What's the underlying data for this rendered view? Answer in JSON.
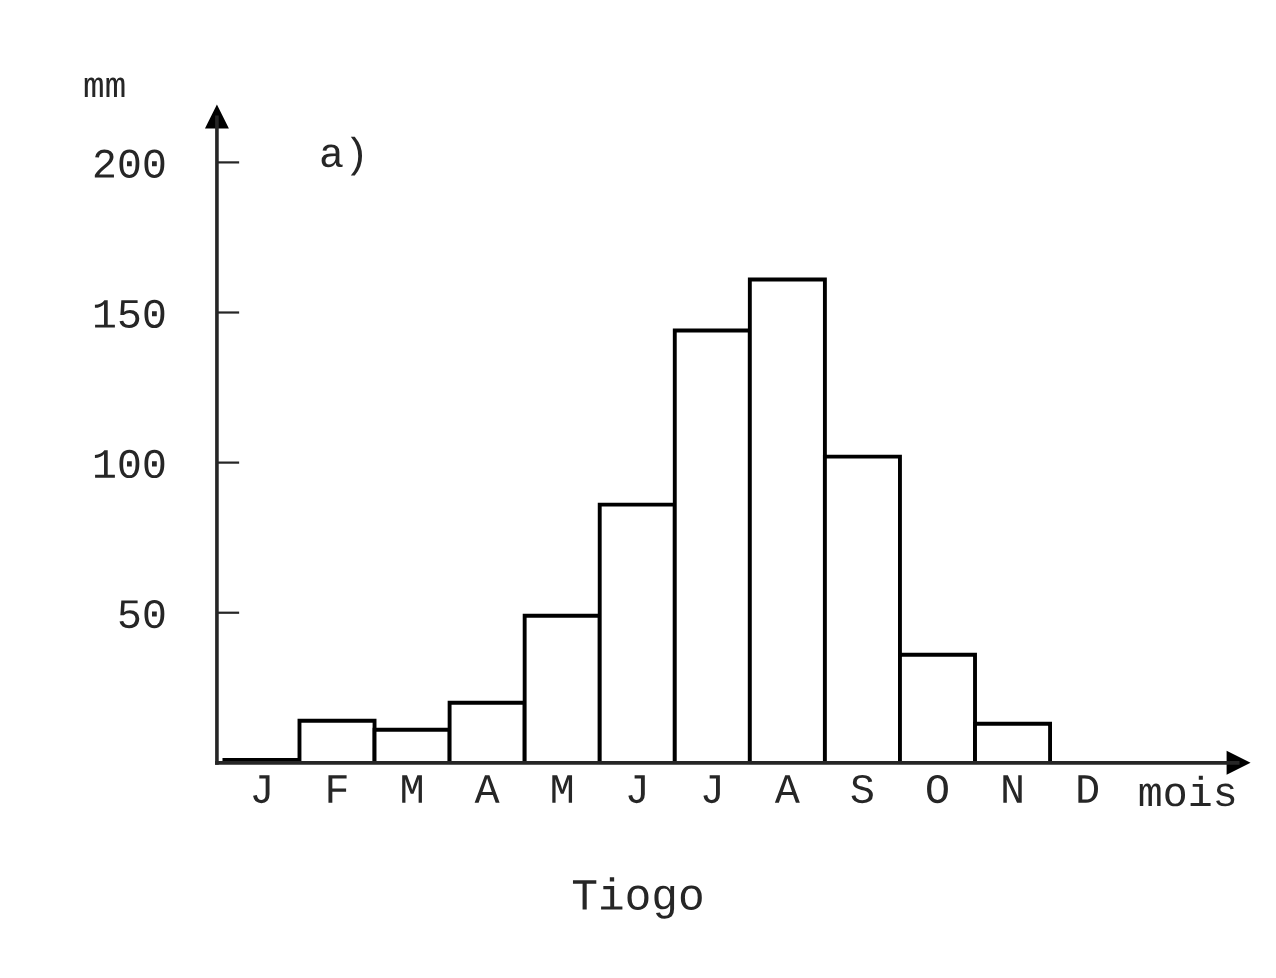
{
  "chart_data": {
    "type": "bar",
    "title": "Tiogo",
    "xlabel": "mois",
    "ylabel": "mm",
    "annotations": [
      "a)"
    ],
    "categories": [
      "J",
      "F",
      "M",
      "A",
      "M",
      "J",
      "J",
      "A",
      "S",
      "O",
      "N",
      "D"
    ],
    "values": [
      1,
      14,
      11,
      20,
      49,
      86,
      144,
      161,
      102,
      36,
      13,
      0
    ],
    "color": "#ffffff",
    "ylim": [
      0,
      215
    ],
    "yticks": [
      50,
      100,
      150,
      200
    ],
    "grid": false
  }
}
